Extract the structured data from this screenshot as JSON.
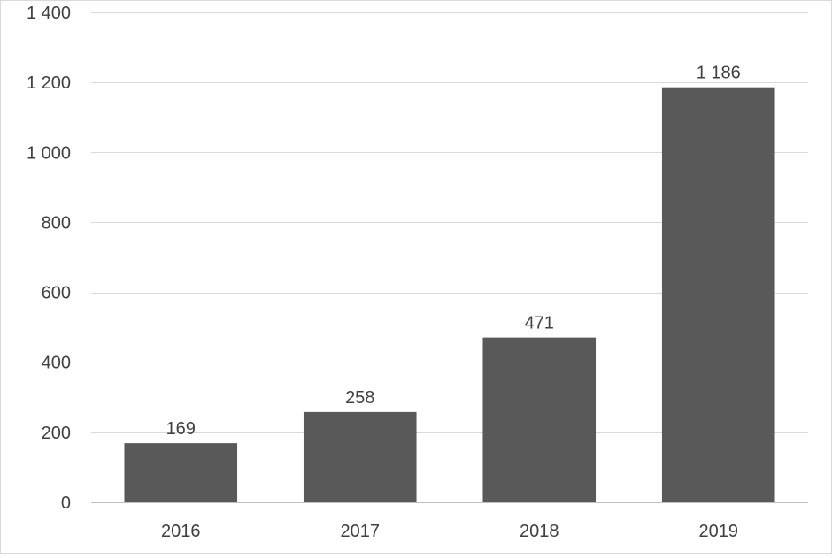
{
  "chart_data": {
    "type": "bar",
    "categories": [
      "2016",
      "2017",
      "2018",
      "2019"
    ],
    "values": [
      169,
      258,
      471,
      1186
    ],
    "value_labels": [
      "169",
      "258",
      "471",
      "1 186"
    ],
    "y_ticks": [
      0,
      200,
      400,
      600,
      800,
      1000,
      1200,
      1400
    ],
    "y_tick_labels": [
      "0",
      "200",
      "400",
      "600",
      "800",
      "1 000",
      "1 200",
      "1 400"
    ],
    "ylim": [
      0,
      1400
    ],
    "grid": true,
    "legend": "none",
    "title": "",
    "xlabel": "",
    "ylabel": "",
    "colors": {
      "bar": "#595959",
      "grid": "#d9d9d9",
      "text": "#404040",
      "frame": "#d9d9d9"
    }
  }
}
